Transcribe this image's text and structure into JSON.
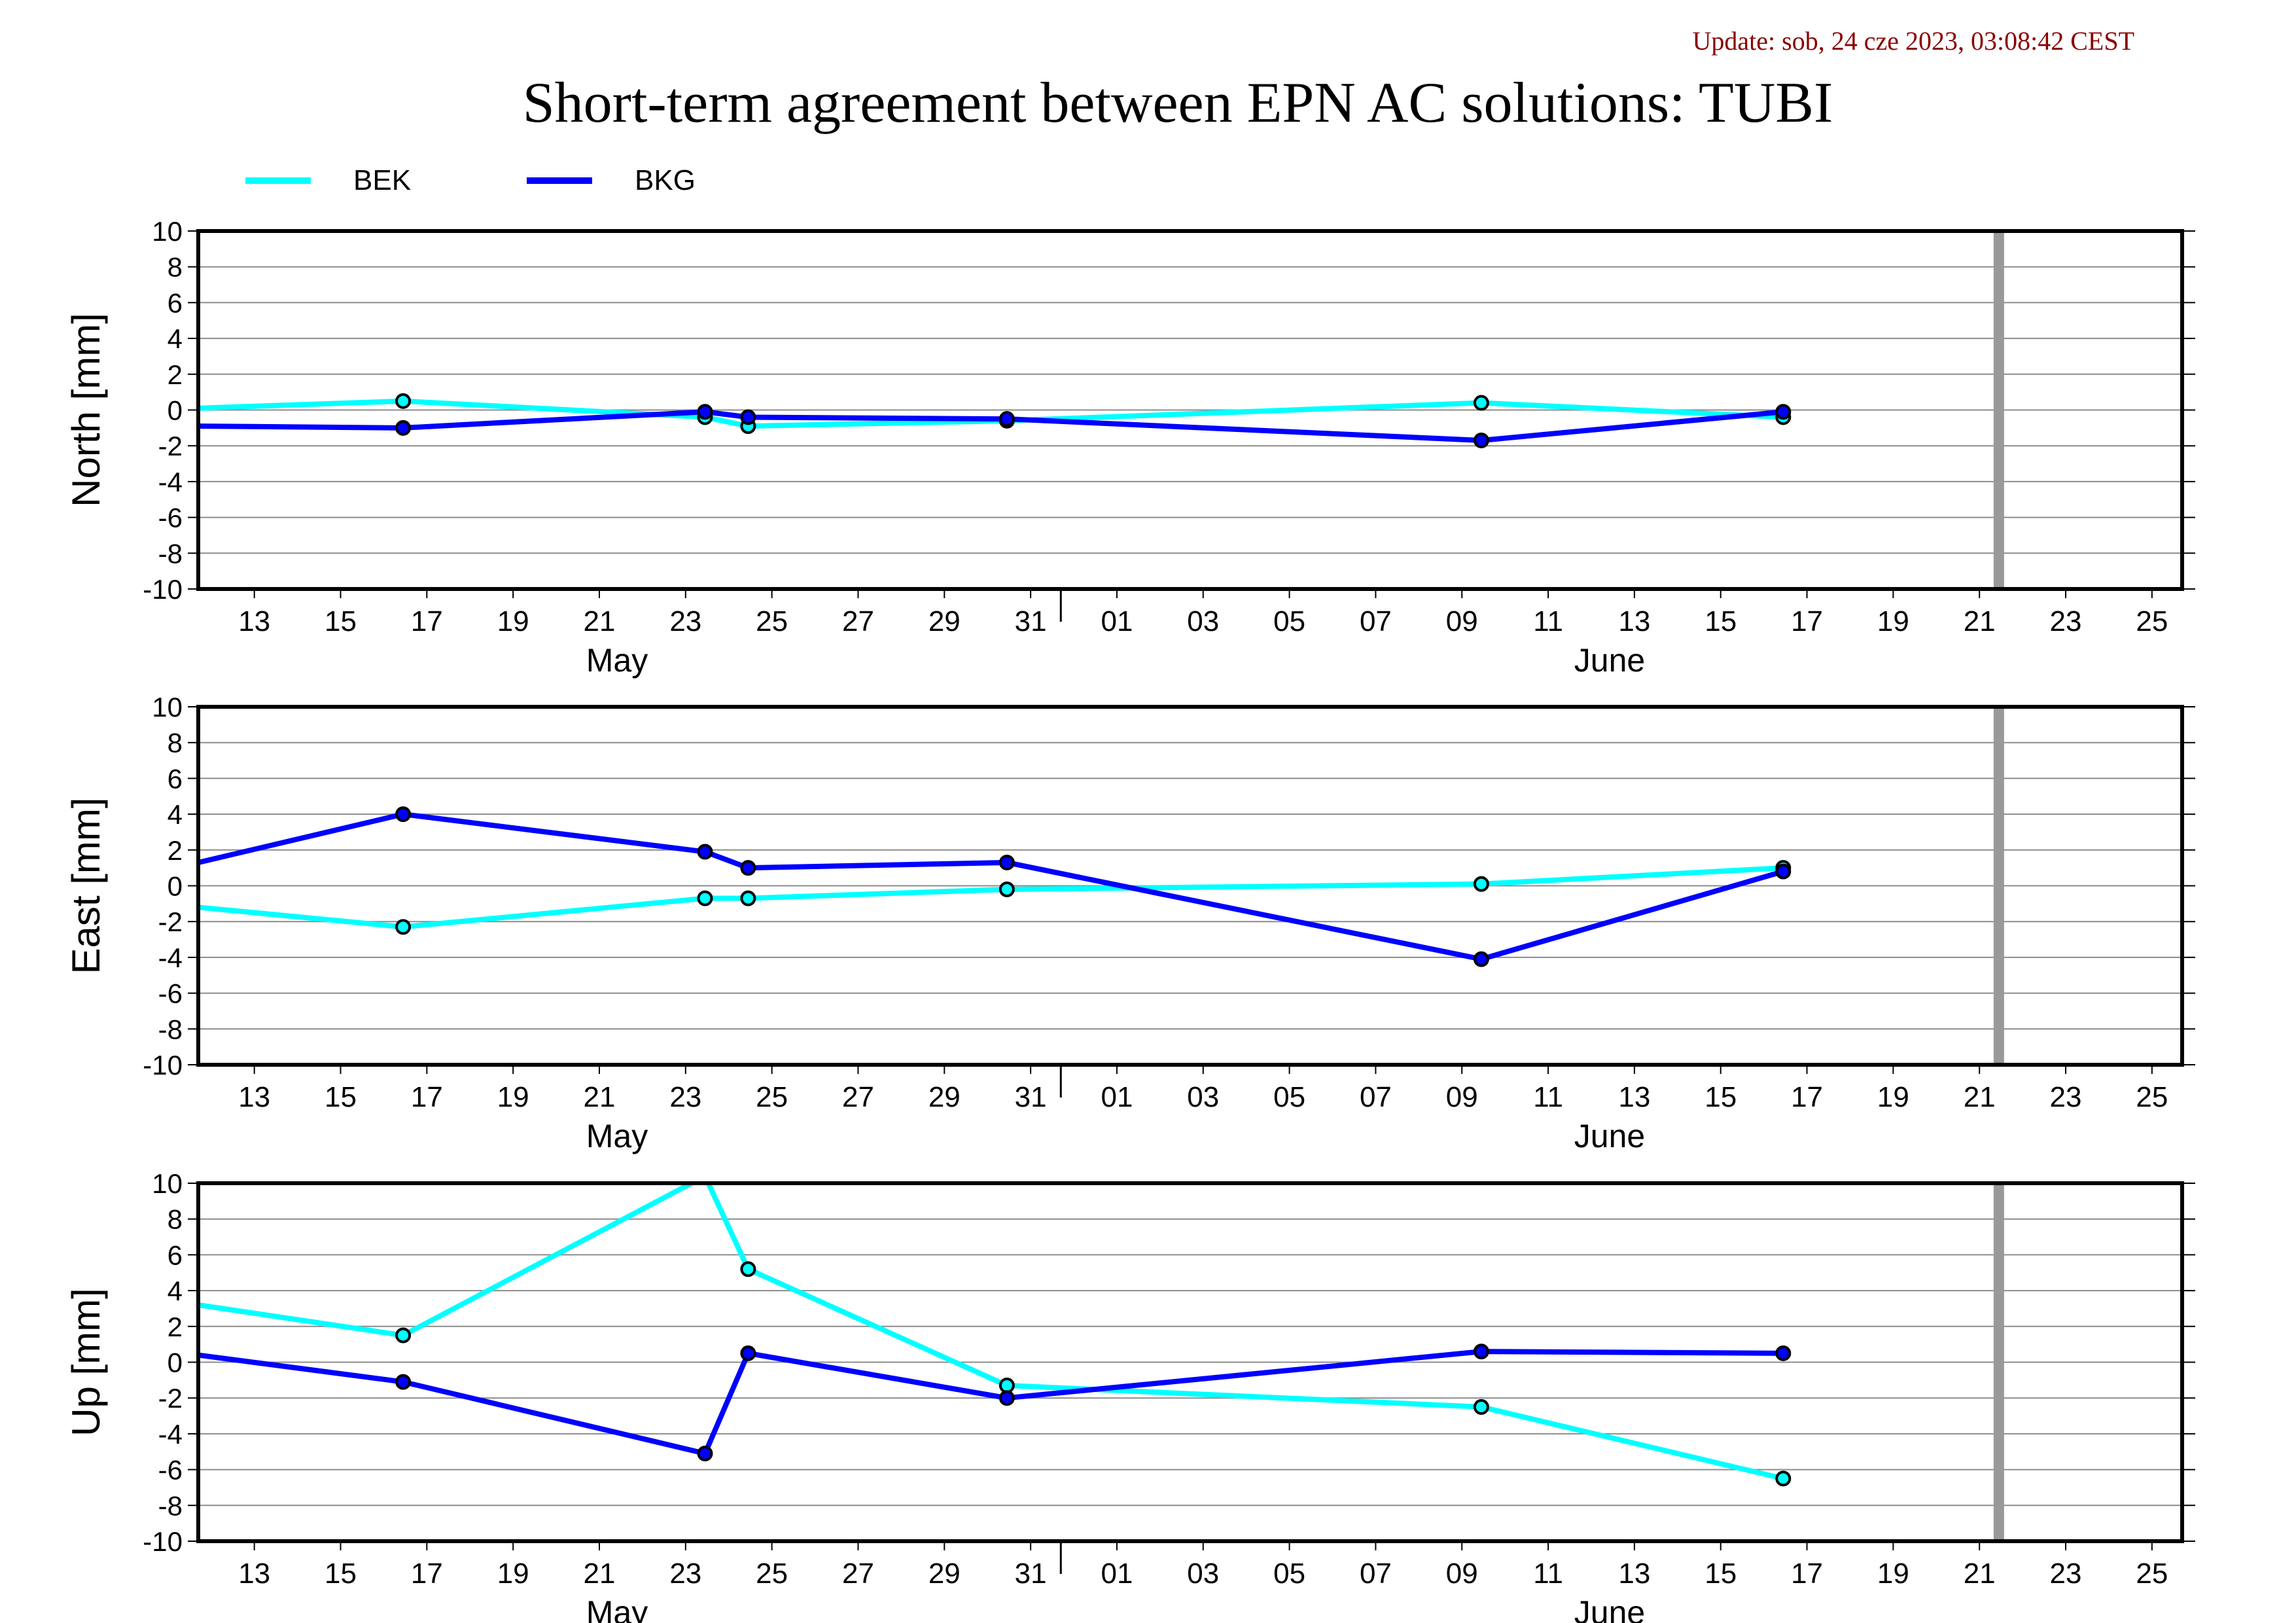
{
  "update_text": "Update: sob, 24 cze 2023, 03:08:42 CEST",
  "title": "Short-term agreement between EPN AC solutions: TUBI",
  "colors": {
    "BEK": "#00ffff",
    "BKG": "#0000ff",
    "update": "#8b0000",
    "marker_line": "#999999"
  },
  "legend": [
    {
      "name": "BEK",
      "color": "#00ffff"
    },
    {
      "name": "BKG",
      "color": "#0000ff"
    }
  ],
  "x_ticks": [
    "13",
    "15",
    "17",
    "19",
    "21",
    "23",
    "25",
    "27",
    "29",
    "31",
    "01",
    "03",
    "05",
    "07",
    "09",
    "11",
    "13",
    "15",
    "17",
    "19",
    "21",
    "23",
    "25"
  ],
  "month_labels": [
    "May",
    "June"
  ],
  "y_ticks": [
    "10",
    "8",
    "6",
    "4",
    "2",
    "0",
    "-2",
    "-4",
    "-6",
    "-8",
    "-10"
  ],
  "chart_data": [
    {
      "type": "line",
      "ylabel": "North [mm]",
      "ylim": [
        -10,
        10
      ],
      "xlim": [
        "2023-05-12",
        "2023-06-27"
      ],
      "grid": true,
      "marker_date": "2023-06-22",
      "series": [
        {
          "name": "BEK",
          "x": [
            "2023-05-12",
            "2023-05-16",
            "2023-05-23",
            "2023-05-24",
            "2023-05-30",
            "2023-06-10",
            "2023-06-17"
          ],
          "values": [
            0.1,
            0.5,
            -0.4,
            -0.9,
            -0.6,
            0.4,
            -0.4
          ]
        },
        {
          "name": "BKG",
          "x": [
            "2023-05-12",
            "2023-05-16",
            "2023-05-23",
            "2023-05-24",
            "2023-05-30",
            "2023-06-10",
            "2023-06-17"
          ],
          "values": [
            -0.9,
            -1.0,
            -0.1,
            -0.4,
            -0.5,
            -1.7,
            -0.1
          ]
        }
      ]
    },
    {
      "type": "line",
      "ylabel": "East [mm]",
      "ylim": [
        -10,
        10
      ],
      "xlim": [
        "2023-05-12",
        "2023-06-27"
      ],
      "grid": true,
      "marker_date": "2023-06-22",
      "series": [
        {
          "name": "BEK",
          "x": [
            "2023-05-12",
            "2023-05-16",
            "2023-05-23",
            "2023-05-24",
            "2023-05-30",
            "2023-06-10",
            "2023-06-17"
          ],
          "values": [
            -1.2,
            -2.3,
            -0.7,
            -0.7,
            -0.2,
            0.1,
            1.0
          ]
        },
        {
          "name": "BKG",
          "x": [
            "2023-05-12",
            "2023-05-16",
            "2023-05-23",
            "2023-05-24",
            "2023-05-30",
            "2023-06-10",
            "2023-06-17"
          ],
          "values": [
            1.3,
            4.0,
            1.9,
            1.0,
            1.3,
            -4.1,
            0.8
          ]
        }
      ]
    },
    {
      "type": "line",
      "ylabel": "Up [mm]",
      "ylim": [
        -10,
        10
      ],
      "xlim": [
        "2023-05-12",
        "2023-06-27"
      ],
      "grid": true,
      "marker_date": "2023-06-22",
      "series": [
        {
          "name": "BEK",
          "x": [
            "2023-05-12",
            "2023-05-16",
            "2023-05-23",
            "2023-05-24",
            "2023-05-30",
            "2023-06-10",
            "2023-06-17"
          ],
          "values": [
            3.2,
            1.5,
            10.4,
            5.2,
            -1.3,
            -2.5,
            -6.5
          ]
        },
        {
          "name": "BKG",
          "x": [
            "2023-05-12",
            "2023-05-16",
            "2023-05-23",
            "2023-05-24",
            "2023-05-30",
            "2023-06-10",
            "2023-06-17"
          ],
          "values": [
            0.4,
            -1.1,
            -5.1,
            0.5,
            -2.0,
            0.6,
            0.5
          ]
        }
      ]
    }
  ]
}
